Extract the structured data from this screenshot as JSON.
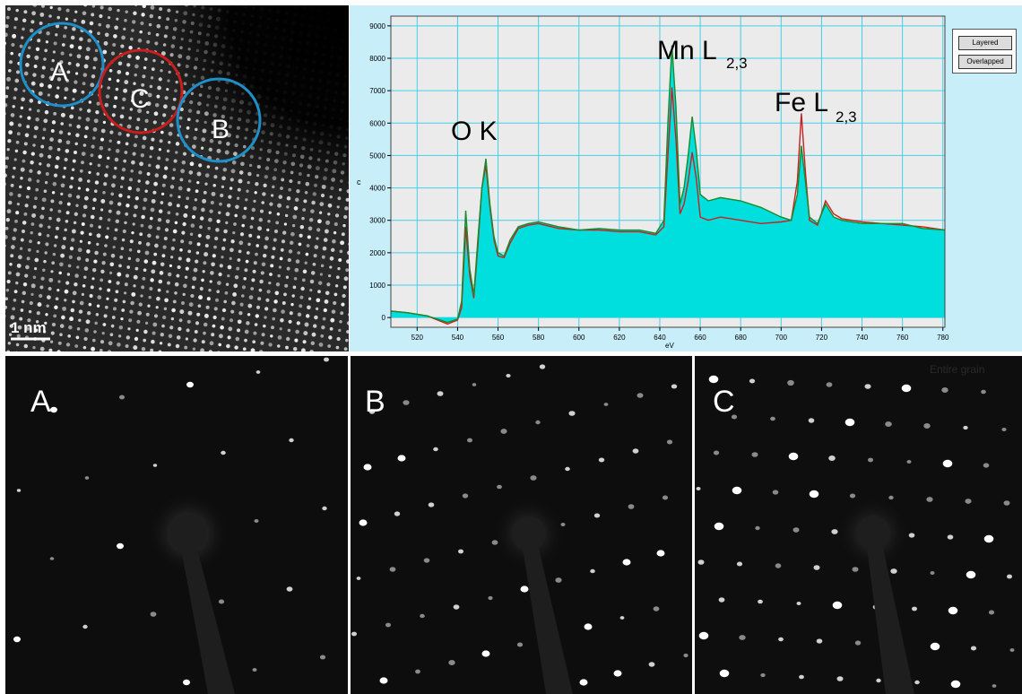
{
  "stem": {
    "regions": [
      {
        "label": "A",
        "color": "#1e8fc8"
      },
      {
        "label": "C",
        "color": "#c81e1e"
      },
      {
        "label": "B",
        "color": "#1e8fc8"
      }
    ],
    "scale_bar": "1 nm"
  },
  "eels": {
    "legend_buttons": [
      "Layered",
      "Overlapped"
    ],
    "peak_labels": {
      "ok": "O K",
      "mn": "Mn L",
      "mn_sub": "2,3",
      "fe": "Fe L",
      "fe_sub": "2,3"
    },
    "faint_overlay": "Entire grain"
  },
  "chart_data": {
    "type": "line",
    "xlabel": "eV",
    "ylabel": "c",
    "xlim": [
      507,
      781
    ],
    "ylim": [
      -300,
      9300
    ],
    "x_ticks": [
      520,
      540,
      560,
      580,
      600,
      620,
      640,
      660,
      680,
      700,
      720,
      740,
      760,
      780
    ],
    "y_ticks": [
      0,
      1000,
      2000,
      3000,
      4000,
      5000,
      6000,
      7000,
      8000,
      9000
    ],
    "grid": true,
    "series": [
      {
        "color": "#1a8a2a",
        "fill": "#00dede",
        "x": [
          507,
          515,
          525,
          535,
          540,
          542,
          544,
          546,
          548,
          550,
          552,
          554,
          556,
          558,
          560,
          563,
          566,
          570,
          575,
          580,
          590,
          600,
          610,
          620,
          630,
          638,
          642,
          644,
          646,
          648,
          650,
          652,
          654,
          656,
          658,
          660,
          664,
          670,
          680,
          690,
          700,
          705,
          708,
          710,
          712,
          714,
          718,
          722,
          726,
          730,
          740,
          750,
          760,
          770,
          781
        ],
        "y": [
          200,
          150,
          50,
          -150,
          -50,
          500,
          3300,
          1500,
          700,
          2400,
          4000,
          4900,
          3500,
          2500,
          2000,
          1900,
          2400,
          2800,
          2900,
          2950,
          2800,
          2700,
          2750,
          2700,
          2700,
          2600,
          3000,
          6000,
          8400,
          6500,
          3500,
          4000,
          5000,
          6200,
          5200,
          3800,
          3600,
          3700,
          3600,
          3400,
          3100,
          3000,
          3800,
          5300,
          4200,
          3100,
          2900,
          3500,
          3100,
          3000,
          2900,
          2900,
          2900,
          2750,
          2700
        ]
      },
      {
        "color": "#c82020",
        "x": [
          507,
          515,
          525,
          535,
          540,
          542,
          544,
          546,
          548,
          550,
          552,
          554,
          556,
          558,
          560,
          563,
          566,
          570,
          575,
          580,
          590,
          600,
          610,
          620,
          630,
          638,
          642,
          644,
          646,
          648,
          650,
          652,
          654,
          656,
          658,
          660,
          664,
          670,
          680,
          690,
          700,
          705,
          708,
          710,
          712,
          714,
          718,
          722,
          726,
          730,
          740,
          750,
          760,
          770,
          781
        ],
        "y": [
          200,
          150,
          50,
          -200,
          -80,
          300,
          2800,
          1300,
          600,
          2200,
          4000,
          4700,
          3400,
          2400,
          1900,
          1850,
          2300,
          2750,
          2850,
          2900,
          2750,
          2700,
          2700,
          2650,
          2650,
          2550,
          2800,
          5000,
          7100,
          5500,
          3200,
          3500,
          4200,
          5100,
          4300,
          3100,
          3000,
          3100,
          3000,
          2900,
          2950,
          3000,
          4200,
          6300,
          4500,
          3000,
          2850,
          3600,
          3200,
          3050,
          2950,
          2900,
          2850,
          2800,
          2700
        ]
      }
    ]
  },
  "diffraction": [
    {
      "label": "A"
    },
    {
      "label": "B"
    },
    {
      "label": "C"
    }
  ]
}
